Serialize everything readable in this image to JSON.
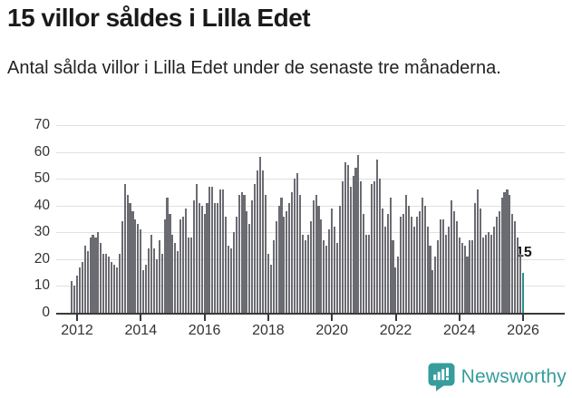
{
  "header": {
    "title": "15 villor såldes i Lilla Edet",
    "subtitle": "Antal sålda villor i Lilla Edet under de senaste tre månaderna."
  },
  "chart_data": {
    "type": "bar",
    "title": "15 villor såldes i Lilla Edet",
    "xlabel": "",
    "ylabel": "",
    "x_start_month": "2011-11",
    "x_end_month": "2026-01",
    "x_tick_labels": [
      "2012",
      "2014",
      "2016",
      "2018",
      "2020",
      "2022",
      "2024",
      "2026"
    ],
    "y_ticks": [
      0,
      10,
      20,
      30,
      40,
      50,
      60,
      70
    ],
    "ylim": [
      0,
      70
    ],
    "grid": true,
    "legend": "none",
    "bar_color": "#6b6b72",
    "highlight_color": "#2e8f8f",
    "values": [
      12,
      10,
      14,
      17,
      19,
      25,
      23,
      28,
      29,
      28,
      30,
      26,
      22,
      22,
      21,
      19,
      18,
      17,
      22,
      34,
      48,
      44,
      41,
      38,
      35,
      33,
      31,
      16,
      18,
      24,
      29,
      24,
      20,
      27,
      22,
      35,
      43,
      37,
      29,
      26,
      23,
      35,
      36,
      39,
      28,
      28,
      42,
      48,
      41,
      40,
      37,
      41,
      47,
      47,
      41,
      41,
      46,
      46,
      36,
      25,
      24,
      30,
      36,
      44,
      45,
      44,
      38,
      33,
      42,
      48,
      53,
      58,
      53,
      44,
      22,
      18,
      27,
      34,
      40,
      43,
      36,
      38,
      41,
      45,
      50,
      52,
      44,
      29,
      27,
      29,
      34,
      42,
      44,
      40,
      35,
      27,
      25,
      31,
      39,
      32,
      26,
      40,
      49,
      56,
      55,
      47,
      51,
      54,
      59,
      49,
      37,
      29,
      29,
      48,
      49,
      57,
      50,
      39,
      32,
      37,
      43,
      27,
      17,
      21,
      36,
      37,
      44,
      40,
      36,
      32,
      36,
      38,
      43,
      40,
      32,
      25,
      16,
      21,
      27,
      35,
      35,
      29,
      32,
      42,
      38,
      34,
      28,
      26,
      25,
      21,
      27,
      27,
      41,
      46,
      39,
      28,
      29,
      30,
      29,
      32,
      36,
      38,
      43,
      45,
      46,
      44,
      37,
      34,
      28,
      22,
      15
    ],
    "highlight": {
      "position": "last",
      "value": 15,
      "label": "15"
    }
  },
  "footer": {
    "brand": "Newsworthy"
  },
  "colors": {
    "bar": "#6b6b72",
    "accent": "#2e8f8f",
    "brand": "#379c9c",
    "gridline": "#e0e0e0",
    "axis": "#3a3a3a",
    "text": "#1a1a1a"
  }
}
